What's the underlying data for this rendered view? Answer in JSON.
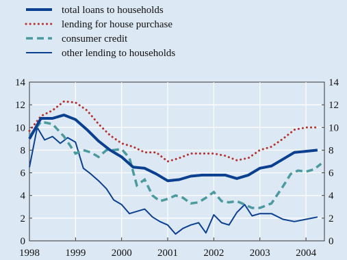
{
  "chart_data": {
    "type": "line",
    "title": "",
    "xlabel": "",
    "ylabel": "",
    "xlim": [
      1998.0,
      2004.4
    ],
    "ylim": [
      0,
      14
    ],
    "x_ticks": [
      1998,
      1999,
      2000,
      2001,
      2002,
      2003,
      2004
    ],
    "x_tick_labels": [
      "1998",
      "1999",
      "2000",
      "2001",
      "2002",
      "2003",
      "2004"
    ],
    "y_ticks": [
      0,
      2,
      4,
      6,
      8,
      10,
      12,
      14
    ],
    "y_tick_labels": [
      "0",
      "2",
      "4",
      "6",
      "8",
      "10",
      "12",
      "14"
    ],
    "grid": true,
    "legend_position": "top-left, above plot",
    "series": [
      {
        "name": "total loans to households",
        "color": "#0b3f8f",
        "style": "solid-thick",
        "points": [
          [
            1998.0,
            9.0
          ],
          [
            1998.25,
            10.8
          ],
          [
            1998.5,
            10.8
          ],
          [
            1998.75,
            11.1
          ],
          [
            1999.0,
            10.7
          ],
          [
            1999.25,
            9.8
          ],
          [
            1999.5,
            8.8
          ],
          [
            1999.75,
            8.0
          ],
          [
            2000.0,
            7.4
          ],
          [
            2000.25,
            6.5
          ],
          [
            2000.5,
            6.4
          ],
          [
            2000.75,
            5.9
          ],
          [
            2001.0,
            5.3
          ],
          [
            2001.25,
            5.4
          ],
          [
            2001.5,
            5.7
          ],
          [
            2001.75,
            5.8
          ],
          [
            2002.0,
            5.8
          ],
          [
            2002.25,
            5.8
          ],
          [
            2002.5,
            5.5
          ],
          [
            2002.75,
            5.8
          ],
          [
            2003.0,
            6.4
          ],
          [
            2003.25,
            6.6
          ],
          [
            2003.5,
            7.2
          ],
          [
            2003.75,
            7.8
          ],
          [
            2004.0,
            7.9
          ],
          [
            2004.25,
            8.0
          ]
        ]
      },
      {
        "name": "lending for house purchase",
        "color": "#b5312d",
        "style": "dotted",
        "points": [
          [
            1998.0,
            9.7
          ],
          [
            1998.25,
            11.0
          ],
          [
            1998.5,
            11.5
          ],
          [
            1998.75,
            12.3
          ],
          [
            1999.0,
            12.2
          ],
          [
            1999.25,
            11.5
          ],
          [
            1999.5,
            10.3
          ],
          [
            1999.75,
            9.3
          ],
          [
            2000.0,
            8.6
          ],
          [
            2000.25,
            8.3
          ],
          [
            2000.5,
            7.8
          ],
          [
            2000.75,
            7.8
          ],
          [
            2001.0,
            7.0
          ],
          [
            2001.25,
            7.3
          ],
          [
            2001.5,
            7.7
          ],
          [
            2001.75,
            7.7
          ],
          [
            2002.0,
            7.7
          ],
          [
            2002.25,
            7.5
          ],
          [
            2002.5,
            7.1
          ],
          [
            2002.75,
            7.3
          ],
          [
            2003.0,
            8.0
          ],
          [
            2003.25,
            8.3
          ],
          [
            2003.5,
            9.0
          ],
          [
            2003.75,
            9.8
          ],
          [
            2004.0,
            10.0
          ],
          [
            2004.25,
            10.0
          ]
        ]
      },
      {
        "name": "consumer credit",
        "color": "#4a9a9e",
        "style": "dashed",
        "points": [
          [
            1998.0,
            9.2
          ],
          [
            1998.25,
            10.5
          ],
          [
            1998.5,
            10.3
          ],
          [
            1998.75,
            9.2
          ],
          [
            1999.0,
            7.7
          ],
          [
            1999.17,
            8.0
          ],
          [
            1999.33,
            7.8
          ],
          [
            1999.5,
            7.4
          ],
          [
            1999.67,
            8.0
          ],
          [
            1999.83,
            8.0
          ],
          [
            2000.0,
            8.1
          ],
          [
            2000.17,
            7.3
          ],
          [
            2000.33,
            4.9
          ],
          [
            2000.5,
            5.4
          ],
          [
            2000.67,
            4.0
          ],
          [
            2000.83,
            3.5
          ],
          [
            2001.0,
            3.7
          ],
          [
            2001.17,
            4.0
          ],
          [
            2001.33,
            3.8
          ],
          [
            2001.5,
            3.3
          ],
          [
            2001.67,
            3.4
          ],
          [
            2001.83,
            3.8
          ],
          [
            2002.0,
            4.3
          ],
          [
            2002.17,
            3.5
          ],
          [
            2002.33,
            3.4
          ],
          [
            2002.5,
            3.5
          ],
          [
            2002.67,
            3.2
          ],
          [
            2002.83,
            2.9
          ],
          [
            2003.0,
            2.9
          ],
          [
            2003.25,
            3.3
          ],
          [
            2003.5,
            4.8
          ],
          [
            2003.67,
            5.9
          ],
          [
            2003.83,
            6.2
          ],
          [
            2004.0,
            6.1
          ],
          [
            2004.17,
            6.3
          ],
          [
            2004.33,
            6.8
          ]
        ]
      },
      {
        "name": "other lending to households",
        "color": "#0b3f8f",
        "style": "solid-thin",
        "points": [
          [
            1998.0,
            6.5
          ],
          [
            1998.17,
            10.0
          ],
          [
            1998.33,
            8.9
          ],
          [
            1998.5,
            9.2
          ],
          [
            1998.67,
            8.6
          ],
          [
            1998.83,
            9.1
          ],
          [
            1999.0,
            8.7
          ],
          [
            1999.17,
            6.4
          ],
          [
            1999.33,
            5.9
          ],
          [
            1999.5,
            5.3
          ],
          [
            1999.67,
            4.6
          ],
          [
            1999.83,
            3.6
          ],
          [
            2000.0,
            3.2
          ],
          [
            2000.17,
            2.4
          ],
          [
            2000.33,
            2.6
          ],
          [
            2000.5,
            2.8
          ],
          [
            2000.67,
            2.1
          ],
          [
            2000.83,
            1.7
          ],
          [
            2001.0,
            1.4
          ],
          [
            2001.17,
            0.6
          ],
          [
            2001.33,
            1.1
          ],
          [
            2001.5,
            1.4
          ],
          [
            2001.67,
            1.6
          ],
          [
            2001.83,
            0.7
          ],
          [
            2002.0,
            2.3
          ],
          [
            2002.17,
            1.6
          ],
          [
            2002.33,
            1.4
          ],
          [
            2002.5,
            2.5
          ],
          [
            2002.67,
            3.2
          ],
          [
            2002.83,
            2.2
          ],
          [
            2003.0,
            2.4
          ],
          [
            2003.25,
            2.4
          ],
          [
            2003.5,
            1.9
          ],
          [
            2003.75,
            1.7
          ],
          [
            2004.0,
            1.9
          ],
          [
            2004.25,
            2.1
          ]
        ]
      }
    ]
  }
}
